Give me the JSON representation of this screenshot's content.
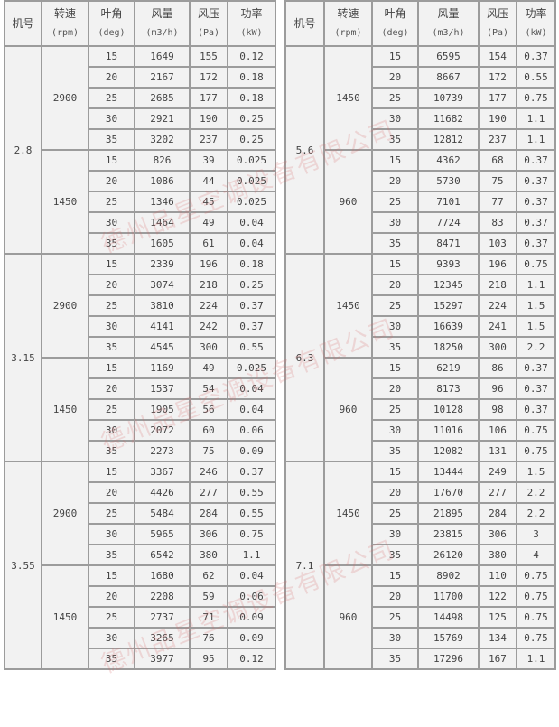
{
  "headers": {
    "model": "机号",
    "speed": {
      "label": "转速",
      "unit": "(rpm)"
    },
    "angle": {
      "label": "叶角",
      "unit": "(deg)"
    },
    "flow": {
      "label": "风量",
      "unit": "(m3/h)"
    },
    "pressure": {
      "label": "风压",
      "unit": "(Pa)"
    },
    "power": {
      "label": "功率",
      "unit": "(kW)"
    }
  },
  "watermark": "德州品星空调设备有限公司",
  "left_table": [
    {
      "model": "2.8",
      "groups": [
        {
          "speed": "2900",
          "rows": [
            [
              "15",
              "1649",
              "155",
              "0.12"
            ],
            [
              "20",
              "2167",
              "172",
              "0.18"
            ],
            [
              "25",
              "2685",
              "177",
              "0.18"
            ],
            [
              "30",
              "2921",
              "190",
              "0.25"
            ],
            [
              "35",
              "3202",
              "237",
              "0.25"
            ]
          ]
        },
        {
          "speed": "1450",
          "rows": [
            [
              "15",
              "826",
              "39",
              "0.025"
            ],
            [
              "20",
              "1086",
              "44",
              "0.025"
            ],
            [
              "25",
              "1346",
              "45",
              "0.025"
            ],
            [
              "30",
              "1464",
              "49",
              "0.04"
            ],
            [
              "35",
              "1605",
              "61",
              "0.04"
            ]
          ]
        }
      ]
    },
    {
      "model": "3.15",
      "groups": [
        {
          "speed": "2900",
          "rows": [
            [
              "15",
              "2339",
              "196",
              "0.18"
            ],
            [
              "20",
              "3074",
              "218",
              "0.25"
            ],
            [
              "25",
              "3810",
              "224",
              "0.37"
            ],
            [
              "30",
              "4141",
              "242",
              "0.37"
            ],
            [
              "35",
              "4545",
              "300",
              "0.55"
            ]
          ]
        },
        {
          "speed": "1450",
          "rows": [
            [
              "15",
              "1169",
              "49",
              "0.025"
            ],
            [
              "20",
              "1537",
              "54",
              "0.04"
            ],
            [
              "25",
              "1905",
              "56",
              "0.04"
            ],
            [
              "30",
              "2072",
              "60",
              "0.06"
            ],
            [
              "35",
              "2273",
              "75",
              "0.09"
            ]
          ]
        }
      ]
    },
    {
      "model": "3.55",
      "groups": [
        {
          "speed": "2900",
          "rows": [
            [
              "15",
              "3367",
              "246",
              "0.37"
            ],
            [
              "20",
              "4426",
              "277",
              "0.55"
            ],
            [
              "25",
              "5484",
              "284",
              "0.55"
            ],
            [
              "30",
              "5965",
              "306",
              "0.75"
            ],
            [
              "35",
              "6542",
              "380",
              "1.1"
            ]
          ]
        },
        {
          "speed": "1450",
          "rows": [
            [
              "15",
              "1680",
              "62",
              "0.04"
            ],
            [
              "20",
              "2208",
              "59",
              "0.06"
            ],
            [
              "25",
              "2737",
              "71",
              "0.09"
            ],
            [
              "30",
              "3265",
              "76",
              "0.09"
            ],
            [
              "35",
              "3977",
              "95",
              "0.12"
            ]
          ]
        }
      ]
    }
  ],
  "right_table": [
    {
      "model": "5.6",
      "groups": [
        {
          "speed": "1450",
          "rows": [
            [
              "15",
              "6595",
              "154",
              "0.37"
            ],
            [
              "20",
              "8667",
              "172",
              "0.55"
            ],
            [
              "25",
              "10739",
              "177",
              "0.75"
            ],
            [
              "30",
              "11682",
              "190",
              "1.1"
            ],
            [
              "35",
              "12812",
              "237",
              "1.1"
            ]
          ]
        },
        {
          "speed": "960",
          "rows": [
            [
              "15",
              "4362",
              "68",
              "0.37"
            ],
            [
              "20",
              "5730",
              "75",
              "0.37"
            ],
            [
              "25",
              "7101",
              "77",
              "0.37"
            ],
            [
              "30",
              "7724",
              "83",
              "0.37"
            ],
            [
              "35",
              "8471",
              "103",
              "0.37"
            ]
          ]
        }
      ]
    },
    {
      "model": "6.3",
      "groups": [
        {
          "speed": "1450",
          "rows": [
            [
              "15",
              "9393",
              "196",
              "0.75"
            ],
            [
              "20",
              "12345",
              "218",
              "1.1"
            ],
            [
              "25",
              "15297",
              "224",
              "1.5"
            ],
            [
              "30",
              "16639",
              "241",
              "1.5"
            ],
            [
              "35",
              "18250",
              "300",
              "2.2"
            ]
          ]
        },
        {
          "speed": "960",
          "rows": [
            [
              "15",
              "6219",
              "86",
              "0.37"
            ],
            [
              "20",
              "8173",
              "96",
              "0.37"
            ],
            [
              "25",
              "10128",
              "98",
              "0.37"
            ],
            [
              "30",
              "11016",
              "106",
              "0.75"
            ],
            [
              "35",
              "12082",
              "131",
              "0.75"
            ]
          ]
        }
      ]
    },
    {
      "model": "7.1",
      "groups": [
        {
          "speed": "1450",
          "rows": [
            [
              "15",
              "13444",
              "249",
              "1.5"
            ],
            [
              "20",
              "17670",
              "277",
              "2.2"
            ],
            [
              "25",
              "21895",
              "284",
              "2.2"
            ],
            [
              "30",
              "23815",
              "306",
              "3"
            ],
            [
              "35",
              "26120",
              "380",
              "4"
            ]
          ]
        },
        {
          "speed": "960",
          "rows": [
            [
              "15",
              "8902",
              "110",
              "0.75"
            ],
            [
              "20",
              "11700",
              "122",
              "0.75"
            ],
            [
              "25",
              "14498",
              "125",
              "0.75"
            ],
            [
              "30",
              "15769",
              "134",
              "0.75"
            ],
            [
              "35",
              "17296",
              "167",
              "1.1"
            ]
          ]
        }
      ]
    }
  ]
}
